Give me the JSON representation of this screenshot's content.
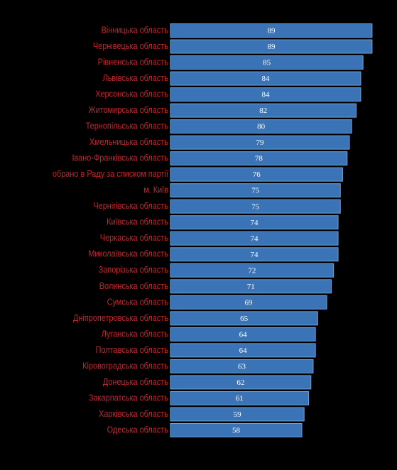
{
  "chart_data": {
    "type": "barh",
    "categories": [
      "Вінницька область",
      "Чернівецька область",
      "Рівненська область",
      "Львівська область",
      "Херсонська область",
      "Житомирська область",
      "Тернопільська область",
      "Хмельницька область",
      "Івано-Франківська область",
      "обрано в Раду за списком партії",
      "м. Київ",
      "Чернігівська область",
      "Київська область",
      "Черкаська область",
      "Миколаївська область",
      "Запорізька область",
      "Волинська область",
      "Сумська область",
      "Дніпропетровська область",
      "Луганська область",
      "Полтавська область",
      "Кіровоградська область",
      "Донецька область",
      "Закарпатська область",
      "Харківська область",
      "Одеська область"
    ],
    "values": [
      89,
      89,
      85,
      84,
      84,
      82,
      80,
      79,
      78,
      76,
      75,
      75,
      74,
      74,
      74,
      72,
      71,
      69,
      65,
      64,
      64,
      63,
      62,
      61,
      59,
      58
    ],
    "color": "#3b74b6",
    "label_color": "#c4262e"
  }
}
